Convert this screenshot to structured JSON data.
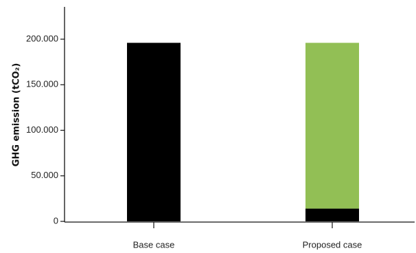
{
  "chart_data": {
    "type": "bar",
    "stacked": true,
    "title": "",
    "xlabel": "",
    "ylabel": "GHG emission (tCO₂)",
    "ylim": [
      0,
      230000
    ],
    "yticks": [
      0,
      50000,
      100000,
      150000,
      200000
    ],
    "ytick_labels": [
      "0",
      "50.000",
      "100.000",
      "150.000",
      "200.000"
    ],
    "categories": [
      "Base case",
      "Proposed case"
    ],
    "series": [
      {
        "color": "#000000",
        "values": [
          196000,
          14000
        ]
      },
      {
        "color": "#92bf55",
        "values": [
          0,
          182000
        ]
      }
    ],
    "grid": false,
    "legend": "none"
  }
}
